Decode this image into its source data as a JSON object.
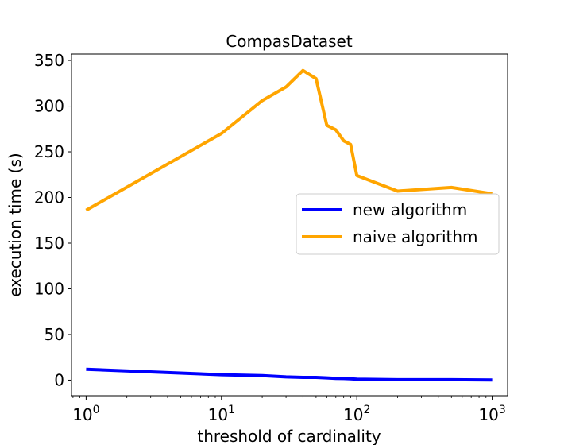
{
  "chart_data": {
    "type": "line",
    "title": "CompasDataset",
    "xlabel": "threshold of cardinality",
    "ylabel": "execution time (s)",
    "xscale": "log",
    "xlim": [
      0.78,
      1300
    ],
    "ylim": [
      -17,
      357
    ],
    "yticks": [
      0,
      50,
      100,
      150,
      200,
      250,
      300,
      350
    ],
    "ytick_labels": [
      "0",
      "50",
      "100",
      "150",
      "200",
      "250",
      "300",
      "350"
    ],
    "xticks": [
      1,
      10,
      100,
      1000
    ],
    "xtick_labels": [
      {
        "base": "10",
        "exp": "0"
      },
      {
        "base": "10",
        "exp": "1"
      },
      {
        "base": "10",
        "exp": "2"
      },
      {
        "base": "10",
        "exp": "3"
      }
    ],
    "grid": false,
    "legend_position": "center-right",
    "series": [
      {
        "name": "new algorithm",
        "color": "#0000ff",
        "x": [
          1,
          10,
          20,
          30,
          40,
          50,
          60,
          70,
          80,
          90,
          100,
          200,
          500,
          1000
        ],
        "y": [
          12,
          6,
          5,
          3.5,
          3,
          3,
          2.5,
          2,
          1.8,
          1.5,
          1,
          0.5,
          0.5,
          0.2
        ]
      },
      {
        "name": "naive algorithm",
        "color": "#ffa500",
        "x": [
          1,
          10,
          20,
          30,
          40,
          50,
          60,
          70,
          80,
          90,
          100,
          200,
          500,
          1000
        ],
        "y": [
          186,
          270,
          306,
          321,
          339,
          330,
          279,
          274,
          262,
          258,
          224,
          207,
          211,
          204
        ]
      }
    ]
  }
}
